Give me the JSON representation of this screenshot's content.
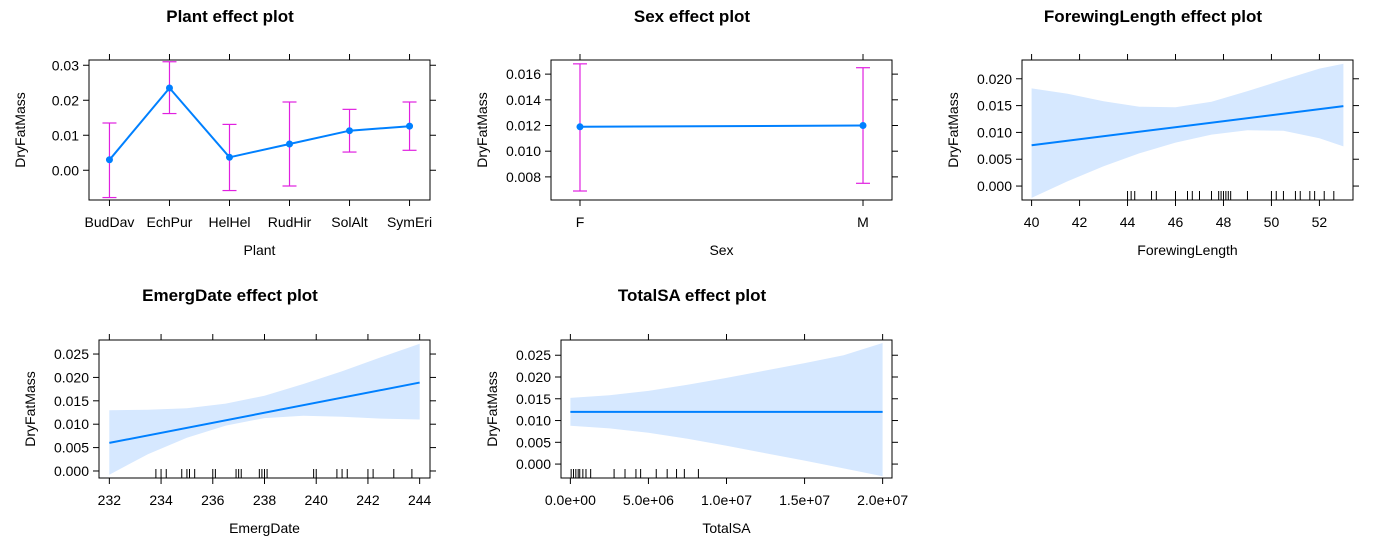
{
  "colors": {
    "line": "#0080ff",
    "band": "#d6e8ff",
    "errorbar": "#e020e0",
    "axis": "#000000"
  },
  "chart_data": [
    {
      "id": "plant",
      "type": "line",
      "title": "Plant effect plot",
      "xlabel": "Plant",
      "ylabel": "DryFatMass",
      "categories": [
        "BudDav",
        "EchPur",
        "HelHel",
        "RudHir",
        "SolAlt",
        "SymEri"
      ],
      "values": [
        0.003,
        0.0235,
        0.0037,
        0.0075,
        0.0113,
        0.0126
      ],
      "lower": [
        -0.0078,
        0.0162,
        -0.0058,
        -0.0045,
        0.0052,
        0.0057
      ],
      "upper": [
        0.0135,
        0.031,
        0.0131,
        0.0195,
        0.0174,
        0.0195
      ],
      "yticks": [
        "0.00",
        "0.01",
        "0.02",
        "0.03"
      ],
      "ylim": [
        -0.0085,
        0.0315
      ]
    },
    {
      "id": "sex",
      "type": "line",
      "title": "Sex effect plot",
      "xlabel": "Sex",
      "ylabel": "DryFatMass",
      "categories": [
        "F",
        "M"
      ],
      "values": [
        0.0119,
        0.012
      ],
      "lower": [
        0.0069,
        0.0075
      ],
      "upper": [
        0.0168,
        0.0165
      ],
      "yticks": [
        "0.008",
        "0.010",
        "0.012",
        "0.014",
        "0.016"
      ],
      "ylim": [
        0.0062,
        0.0171
      ]
    },
    {
      "id": "forewing",
      "type": "area",
      "title": "ForewingLength effect plot",
      "xlabel": "ForewingLength",
      "ylabel": "DryFatMass",
      "x": [
        40,
        53
      ],
      "y": [
        0.0076,
        0.0149
      ],
      "band_x": [
        40,
        41.5,
        43,
        44.5,
        46,
        47.5,
        49,
        50.5,
        52,
        53
      ],
      "band_lower": [
        -0.0022,
        0.0009,
        0.0037,
        0.0061,
        0.0081,
        0.0096,
        0.0104,
        0.0103,
        0.0089,
        0.0074
      ],
      "band_upper": [
        0.0182,
        0.0172,
        0.0158,
        0.0148,
        0.0147,
        0.0157,
        0.0177,
        0.0198,
        0.0219,
        0.0228
      ],
      "rug": [
        44,
        44.15,
        44.3,
        45,
        45.2,
        46,
        46.5,
        46.7,
        47,
        47.5,
        47.8,
        47.9,
        48,
        48.1,
        48.2,
        48.3,
        49,
        50,
        50.2,
        50.5,
        51,
        51.2,
        51.6,
        51.8,
        52.2,
        52.6
      ],
      "xticks": [
        "40",
        "42",
        "44",
        "46",
        "48",
        "50",
        "52"
      ],
      "xtick_values": [
        40,
        42,
        44,
        46,
        48,
        50,
        52
      ],
      "yticks": [
        "0.000",
        "0.005",
        "0.010",
        "0.015",
        "0.020"
      ],
      "ytick_values": [
        0,
        0.005,
        0.01,
        0.015,
        0.02
      ],
      "xlim": [
        39.6,
        53.4
      ],
      "ylim": [
        -0.0026,
        0.0235
      ]
    },
    {
      "id": "emerg",
      "type": "area",
      "title": "EmergDate effect plot",
      "xlabel": "EmergDate",
      "ylabel": "DryFatMass",
      "x": [
        232,
        244
      ],
      "y": [
        0.006,
        0.0189
      ],
      "band_x": [
        232,
        233.5,
        235,
        236.5,
        238,
        239.5,
        241,
        242.5,
        244
      ],
      "band_lower": [
        -0.0008,
        0.0036,
        0.0071,
        0.0097,
        0.0113,
        0.0118,
        0.0116,
        0.0112,
        0.011
      ],
      "band_upper": [
        0.013,
        0.0131,
        0.0134,
        0.0144,
        0.0161,
        0.0186,
        0.0213,
        0.0243,
        0.0272
      ],
      "rug": [
        233.8,
        234,
        234.2,
        234.8,
        235,
        235.1,
        235.3,
        236,
        236.1,
        236.9,
        237,
        237.1,
        237.8,
        237.9,
        238,
        238.1,
        239.9,
        240,
        240.8,
        241,
        241.2,
        242,
        242.2,
        243,
        243.7
      ],
      "xticks": [
        "232",
        "234",
        "236",
        "238",
        "240",
        "242",
        "244"
      ],
      "xtick_values": [
        232,
        234,
        236,
        238,
        240,
        242,
        244
      ],
      "yticks": [
        "0.000",
        "0.005",
        "0.010",
        "0.015",
        "0.020",
        "0.025"
      ],
      "ytick_values": [
        0,
        0.005,
        0.01,
        0.015,
        0.02,
        0.025
      ],
      "xlim": [
        231.6,
        244.4
      ],
      "ylim": [
        -0.0015,
        0.028
      ]
    },
    {
      "id": "totalsa",
      "type": "area",
      "title": "TotalSA effect plot",
      "xlabel": "TotalSA",
      "ylabel": "DryFatMass",
      "x": [
        0,
        20000000
      ],
      "y": [
        0.012,
        0.012
      ],
      "band_x": [
        0,
        2500000,
        5000000,
        7500000,
        10000000,
        12500000,
        15000000,
        17500000,
        20000000
      ],
      "band_lower": [
        0.0088,
        0.0082,
        0.0072,
        0.0058,
        0.0042,
        0.0025,
        0.0008,
        -0.001,
        -0.0028
      ],
      "band_upper": [
        0.0152,
        0.0158,
        0.0168,
        0.0182,
        0.0198,
        0.0215,
        0.0232,
        0.025,
        0.0278
      ],
      "rug": [
        50000,
        200000,
        350000,
        500000,
        600000,
        800000,
        1000000,
        1300000,
        2800000,
        3500000,
        4200000,
        4500000,
        5500000,
        6200000,
        6800000,
        7300000,
        8200000
      ],
      "xticks": [
        "0.0e+00",
        "5.0e+06",
        "1.0e+07",
        "1.5e+07",
        "2.0e+07"
      ],
      "xtick_values": [
        0,
        5000000,
        10000000,
        15000000,
        20000000
      ],
      "yticks": [
        "0.000",
        "0.005",
        "0.010",
        "0.015",
        "0.020",
        "0.025"
      ],
      "ytick_values": [
        0,
        0.005,
        0.01,
        0.015,
        0.02,
        0.025
      ],
      "xlim": [
        -600000,
        20600000
      ],
      "ylim": [
        -0.0032,
        0.0285
      ]
    }
  ]
}
